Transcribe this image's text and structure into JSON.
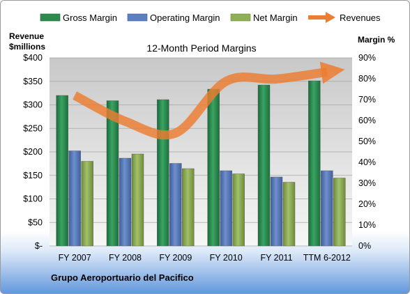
{
  "chart_data": {
    "type": "bar",
    "title": "12-Month Period Margins",
    "categories": [
      "FY 2007",
      "FY 2008",
      "FY 2009",
      "FY 2010",
      "FY 2011",
      "TTM 6-2012"
    ],
    "series": [
      {
        "name": "Gross Margin",
        "axis": "right",
        "values": [
          72,
          69.5,
          70,
          75,
          77,
          79
        ],
        "color": "#2e8b4e"
      },
      {
        "name": "Operating Margin",
        "axis": "right",
        "values": [
          45.5,
          42,
          39.5,
          36,
          33,
          36
        ],
        "color": "#5b7fbf"
      },
      {
        "name": "Net Margin",
        "axis": "right",
        "values": [
          40.5,
          44,
          37,
          34.5,
          30.5,
          32.5
        ],
        "color": "#8fae55"
      },
      {
        "name": "Revenues",
        "axis": "left",
        "type": "line",
        "values": [
          320,
          265,
          240,
          350,
          355,
          370
        ],
        "color": "#ed7d31"
      }
    ],
    "ylabel_left": "Revenue\n$millions",
    "ylabel_right": "Margin %",
    "ylim_left": [
      0,
      400
    ],
    "ylim_right": [
      0,
      90
    ],
    "left_ticks": [
      "$-",
      "$50",
      "$100",
      "$150",
      "$200",
      "$250",
      "$300",
      "$350",
      "$400"
    ],
    "right_ticks": [
      "0%",
      "10%",
      "20%",
      "30%",
      "40%",
      "50%",
      "60%",
      "70%",
      "80%",
      "90%"
    ],
    "grid": true,
    "legend_position": "top",
    "source_label": "Grupo Aeroportuario  del Pacifico"
  }
}
